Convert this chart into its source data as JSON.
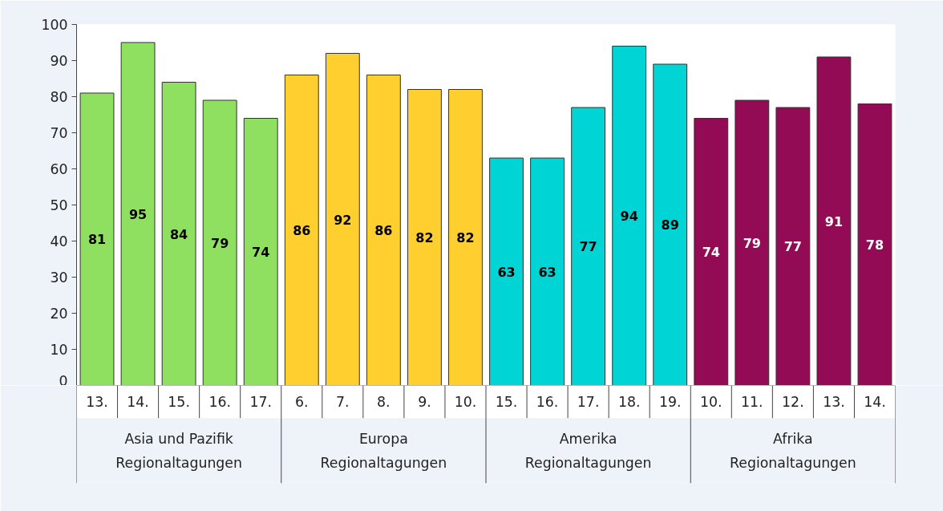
{
  "chart_data": {
    "type": "bar",
    "categories": [
      "13.",
      "14.",
      "15.",
      "16.",
      "17.",
      "6.",
      "7.",
      "8.",
      "9.",
      "10.",
      "15.",
      "16.",
      "17.",
      "18.",
      "19.",
      "10.",
      "11.",
      "12.",
      "13.",
      "14."
    ],
    "series": [
      {
        "name": "Asia und Pazifik\nRegionaltagungen",
        "color": "#8fe060",
        "values": [
          81,
          95,
          84,
          79,
          74,
          null,
          null,
          null,
          null,
          null,
          null,
          null,
          null,
          null,
          null,
          null,
          null,
          null,
          null,
          null
        ]
      },
      {
        "name": "Europa\nRegionaltagungen",
        "color": "#ffcf30",
        "values": [
          null,
          null,
          null,
          null,
          null,
          86,
          92,
          86,
          82,
          82,
          null,
          null,
          null,
          null,
          null,
          null,
          null,
          null,
          null,
          null
        ]
      },
      {
        "name": "Amerika\nRegionaltagungen",
        "color": "#00d4d4",
        "values": [
          null,
          null,
          null,
          null,
          null,
          null,
          null,
          null,
          null,
          null,
          63,
          63,
          77,
          94,
          89,
          null,
          null,
          null,
          null,
          null
        ]
      },
      {
        "name": "Afrika\nRegionaltagungen",
        "color": "#930b55",
        "values": [
          null,
          null,
          null,
          null,
          null,
          null,
          null,
          null,
          null,
          null,
          null,
          null,
          null,
          null,
          null,
          74,
          79,
          77,
          91,
          78
        ]
      }
    ],
    "ylim": [
      0,
      100
    ],
    "yticks": [
      0,
      10,
      20,
      30,
      40,
      50,
      60,
      70,
      80,
      90,
      100
    ],
    "data_labels": true,
    "grid": false
  }
}
